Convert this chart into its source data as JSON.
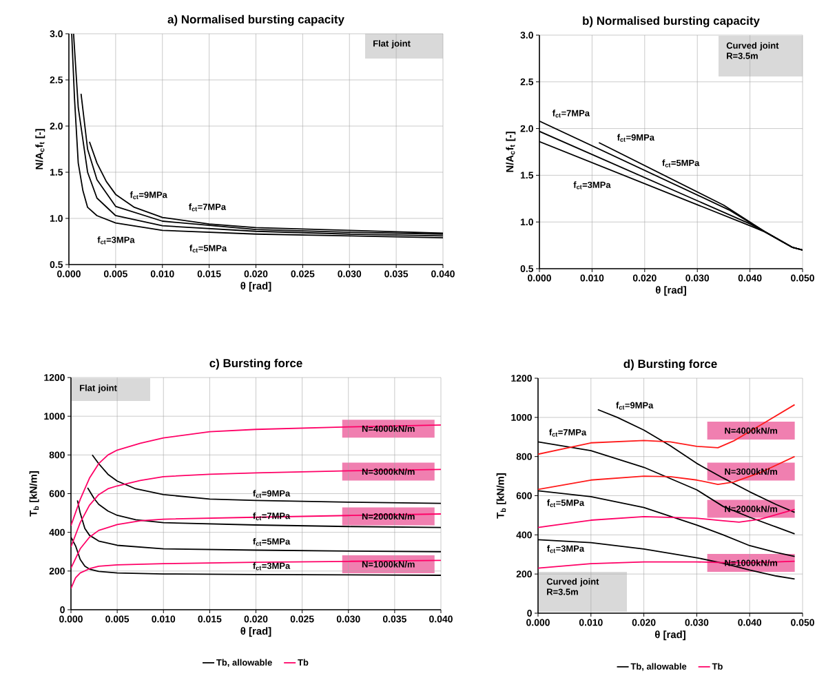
{
  "chart_data": [
    {
      "type": "line",
      "title": "a) Normalised bursting capacity",
      "xlabel": "θ [rad]",
      "ylabel": "N/A$_{c}$f$_{t}$ [-]",
      "xlim": [
        0,
        0.04
      ],
      "ylim": [
        0.5,
        3.0
      ],
      "xticks": [
        {
          "value": 0,
          "label": "0.000"
        },
        {
          "value": 0.005,
          "label": "0.005"
        },
        {
          "value": 0.01,
          "label": "0.010"
        },
        {
          "value": 0.015,
          "label": "0.015"
        },
        {
          "value": 0.02,
          "label": "0.020"
        },
        {
          "value": 0.025,
          "label": "0.025"
        },
        {
          "value": 0.03,
          "label": "0.030"
        },
        {
          "value": 0.035,
          "label": "0.035"
        },
        {
          "value": 0.04,
          "label": "0.040"
        }
      ],
      "yticks": [
        {
          "value": 0.5,
          "label": "0.5"
        },
        {
          "value": 1,
          "label": "1.0"
        },
        {
          "value": 1.5,
          "label": "1.5"
        },
        {
          "value": 2,
          "label": "2.0"
        },
        {
          "value": 2.5,
          "label": "2.5"
        },
        {
          "value": 3,
          "label": "3.0"
        }
      ],
      "grid": true,
      "marker": "none",
      "line_style": "solid",
      "series": [
        {
          "color": "#000000",
          "x": [
            0.0003,
            0.0006,
            0.001,
            0.0015,
            0.002,
            0.003,
            0.005,
            0.01,
            0.02,
            0.03,
            0.04
          ],
          "values": [
            3.0,
            2.3,
            1.6,
            1.3,
            1.12,
            1.03,
            0.95,
            0.87,
            0.83,
            0.81,
            0.79
          ]
        },
        {
          "color": "#000000",
          "x": [
            0.0005,
            0.001,
            0.002,
            0.003,
            0.005,
            0.01,
            0.02,
            0.03,
            0.04
          ],
          "values": [
            3.0,
            2.2,
            1.5,
            1.22,
            1.03,
            0.92,
            0.86,
            0.83,
            0.81
          ]
        },
        {
          "color": "#000000",
          "x": [
            0.0013,
            0.002,
            0.003,
            0.005,
            0.01,
            0.02,
            0.03,
            0.04
          ],
          "values": [
            2.35,
            1.75,
            1.42,
            1.13,
            0.97,
            0.88,
            0.85,
            0.83
          ]
        },
        {
          "color": "#000000",
          "x": [
            0.0022,
            0.003,
            0.004,
            0.005,
            0.007,
            0.01,
            0.015,
            0.02,
            0.03,
            0.04
          ],
          "values": [
            1.83,
            1.6,
            1.4,
            1.26,
            1.12,
            1.01,
            0.94,
            0.9,
            0.87,
            0.84
          ]
        }
      ],
      "annotations": [
        "Flat joint",
        "f$_{ct}$=9MPa",
        "f$_{ct}$=7MPa",
        "f$_{ct}$=5MPa",
        "f$_{ct}$=3MPa"
      ]
    },
    {
      "type": "line",
      "title": "b) Normalised bursting capacity",
      "xlabel": "θ [rad]",
      "ylabel": "N/A$_{c}$f$_{t}$ [-]",
      "xlim": [
        0,
        0.05
      ],
      "ylim": [
        0.5,
        3.0
      ],
      "xticks": [
        {
          "value": 0,
          "label": "0.000"
        },
        {
          "value": 0.01,
          "label": "0.010"
        },
        {
          "value": 0.02,
          "label": "0.020"
        },
        {
          "value": 0.03,
          "label": "0.030"
        },
        {
          "value": 0.04,
          "label": "0.040"
        },
        {
          "value": 0.05,
          "label": "0.050"
        }
      ],
      "yticks": [
        {
          "value": 0.5,
          "label": "0.5"
        },
        {
          "value": 1,
          "label": "1.0"
        },
        {
          "value": 1.5,
          "label": "1.5"
        },
        {
          "value": 2,
          "label": "2.0"
        },
        {
          "value": 2.5,
          "label": "2.5"
        },
        {
          "value": 3,
          "label": "3.0"
        }
      ],
      "grid": true,
      "marker": "none",
      "line_style": "solid",
      "series": [
        {
          "color": "#000000",
          "x": [
            0,
            0.04,
            0.043,
            0.048,
            0.05
          ],
          "values": [
            1.86,
            0.96,
            0.89,
            0.73,
            0.7
          ]
        },
        {
          "color": "#000000",
          "x": [
            0,
            0.04,
            0.043,
            0.048,
            0.05
          ],
          "values": [
            1.97,
            0.98,
            0.89,
            0.73,
            0.7
          ]
        },
        {
          "color": "#000000",
          "x": [
            0,
            0.036,
            0.043,
            0.048,
            0.05
          ],
          "values": [
            2.08,
            1.13,
            0.89,
            0.73,
            0.7
          ]
        },
        {
          "color": "#000000",
          "x": [
            0.0113,
            0.035,
            0.043,
            0.048,
            0.05
          ],
          "values": [
            1.85,
            1.18,
            0.89,
            0.73,
            0.7
          ]
        }
      ],
      "annotations": [
        "Curved joint R=3.5m",
        "f$_{ct}$=7MPa",
        "f$_{ct}$=9MPa",
        "f$_{ct}$=5MPa",
        "f$_{ct}$=3MPa"
      ]
    },
    {
      "type": "line",
      "title": "c) Bursting force",
      "xlabel": "θ [rad]",
      "ylabel": "T$_{b}$ [kN/m]",
      "xlim": [
        0,
        0.04
      ],
      "ylim": [
        0,
        1200
      ],
      "xticks": [
        {
          "value": 0,
          "label": "0.000"
        },
        {
          "value": 0.005,
          "label": "0.005"
        },
        {
          "value": 0.01,
          "label": "0.010"
        },
        {
          "value": 0.015,
          "label": "0.015"
        },
        {
          "value": 0.02,
          "label": "0.020"
        },
        {
          "value": 0.025,
          "label": "0.025"
        },
        {
          "value": 0.03,
          "label": "0.030"
        },
        {
          "value": 0.035,
          "label": "0.035"
        },
        {
          "value": 0.04,
          "label": "0.040"
        }
      ],
      "yticks": [
        0,
        200,
        400,
        600,
        800,
        1000,
        1200
      ],
      "grid": true,
      "marker": "none",
      "line_style": "solid",
      "legend": "bottom",
      "series": [
        {
          "name": "Tb, allowable",
          "color": "#000000",
          "x": [
            0,
            0.0005,
            0.001,
            0.0015,
            0.002,
            0.003,
            0.005,
            0.01,
            0.02,
            0.03,
            0.04
          ],
          "values": [
            375,
            330,
            260,
            225,
            210,
            198,
            190,
            185,
            182,
            180,
            178
          ]
        },
        {
          "color": "#000000",
          "x": [
            0.0007,
            0.001,
            0.0015,
            0.002,
            0.003,
            0.005,
            0.01,
            0.02,
            0.03,
            0.04
          ],
          "values": [
            565,
            500,
            420,
            385,
            355,
            333,
            315,
            308,
            303,
            300
          ]
        },
        {
          "color": "#000000",
          "x": [
            0.0018,
            0.0025,
            0.003,
            0.004,
            0.005,
            0.007,
            0.01,
            0.02,
            0.03,
            0.04
          ],
          "values": [
            630,
            575,
            545,
            510,
            488,
            465,
            450,
            438,
            430,
            425
          ]
        },
        {
          "color": "#000000",
          "x": [
            0.0023,
            0.003,
            0.004,
            0.005,
            0.007,
            0.01,
            0.015,
            0.02,
            0.03,
            0.04
          ],
          "values": [
            800,
            755,
            700,
            665,
            625,
            595,
            572,
            565,
            556,
            550
          ]
        },
        {
          "name": "Tb",
          "color": "#ff0066",
          "x": [
            0,
            0.0005,
            0.001,
            0.002,
            0.003,
            0.005,
            0.01,
            0.02,
            0.03,
            0.04
          ],
          "values": [
            110,
            165,
            190,
            212,
            225,
            232,
            238,
            245,
            250,
            255
          ]
        },
        {
          "color": "#ff0066",
          "x": [
            0,
            0.001,
            0.002,
            0.003,
            0.005,
            0.0075,
            0.01,
            0.02,
            0.03,
            0.04
          ],
          "values": [
            215,
            315,
            375,
            410,
            440,
            460,
            468,
            478,
            487,
            495
          ]
        },
        {
          "color": "#ff0066",
          "x": [
            0,
            0.001,
            0.002,
            0.003,
            0.004,
            0.005,
            0.0075,
            0.01,
            0.015,
            0.02,
            0.03,
            0.04
          ],
          "values": [
            325,
            450,
            540,
            595,
            625,
            640,
            668,
            688,
            700,
            707,
            718,
            725
          ]
        },
        {
          "color": "#ff0066",
          "x": [
            0,
            0.001,
            0.002,
            0.003,
            0.004,
            0.005,
            0.0075,
            0.01,
            0.015,
            0.02,
            0.03,
            0.04
          ],
          "values": [
            435,
            570,
            680,
            755,
            800,
            825,
            860,
            888,
            920,
            932,
            945,
            955
          ]
        }
      ],
      "annotations": [
        "Flat joint",
        "f$_{ct}$=9MPa",
        "f$_{ct}$=7MPa",
        "f$_{ct}$=5MPa",
        "f$_{ct}$=3MPa",
        "N=4000kN/m",
        "N=3000kN/m",
        "N=2000kN/m",
        "N=1000kN/m"
      ]
    },
    {
      "type": "line",
      "title": "d) Bursting force",
      "xlabel": "θ [rad]",
      "ylabel": "T$_{b}$ [kN/m]",
      "xlim": [
        0,
        0.05
      ],
      "ylim": [
        0,
        1200
      ],
      "xticks": [
        {
          "value": 0,
          "label": "0.000"
        },
        {
          "value": 0.01,
          "label": "0.010"
        },
        {
          "value": 0.02,
          "label": "0.020"
        },
        {
          "value": 0.03,
          "label": "0.030"
        },
        {
          "value": 0.04,
          "label": "0.040"
        },
        {
          "value": 0.05,
          "label": "0.050"
        }
      ],
      "yticks": [
        0,
        200,
        400,
        600,
        800,
        1000,
        1200
      ],
      "grid": true,
      "marker": "none",
      "line_style": "solid",
      "legend": "bottom",
      "series": [
        {
          "name": "Tb, allowable",
          "color": "#000000",
          "x": [
            0,
            0.01,
            0.02,
            0.03,
            0.035,
            0.04,
            0.045,
            0.0485
          ],
          "values": [
            375,
            360,
            328,
            283,
            255,
            220,
            190,
            175
          ]
        },
        {
          "color": "#000000",
          "x": [
            0,
            0.01,
            0.02,
            0.03,
            0.035,
            0.04,
            0.045,
            0.0485
          ],
          "values": [
            625,
            595,
            540,
            450,
            400,
            345,
            310,
            290
          ]
        },
        {
          "color": "#000000",
          "x": [
            0,
            0.01,
            0.02,
            0.03,
            0.035,
            0.04,
            0.045,
            0.0485
          ],
          "values": [
            875,
            830,
            745,
            630,
            545,
            490,
            440,
            405
          ]
        },
        {
          "color": "#000000",
          "x": [
            0.0113,
            0.015,
            0.02,
            0.025,
            0.03,
            0.035,
            0.04,
            0.045,
            0.0485
          ],
          "values": [
            1040,
            1000,
            935,
            855,
            765,
            690,
            620,
            555,
            515
          ]
        },
        {
          "name": "Tb",
          "color": "#ff0066",
          "x": [
            0,
            0.01,
            0.02,
            0.03,
            0.035,
            0.04,
            0.045,
            0.0485
          ],
          "values": [
            230,
            253,
            262,
            262,
            258,
            258,
            262,
            265
          ]
        },
        {
          "color": "#ff0066",
          "x": [
            0,
            0.01,
            0.02,
            0.03,
            0.035,
            0.038,
            0.042,
            0.0485
          ],
          "values": [
            438,
            475,
            493,
            485,
            472,
            465,
            480,
            530
          ]
        },
        {
          "color": "#ff1a1a",
          "x": [
            0,
            0.01,
            0.02,
            0.025,
            0.03,
            0.034,
            0.037,
            0.042,
            0.0485
          ],
          "values": [
            632,
            680,
            700,
            697,
            680,
            658,
            670,
            718,
            800
          ]
        },
        {
          "color": "#ff1a1a",
          "x": [
            0,
            0.01,
            0.02,
            0.025,
            0.03,
            0.034,
            0.037,
            0.042,
            0.0485
          ],
          "values": [
            812,
            870,
            882,
            875,
            852,
            845,
            880,
            960,
            1065
          ]
        }
      ],
      "annotations": [
        "Curved joint R=3.5m",
        "f$_{ct}$=9MPa",
        "f$_{ct}$=7MPa",
        "f$_{ct}$=5MPa",
        "f$_{ct}$=3MPa",
        "N=4000kN/m",
        "N=3000kN/m",
        "N=2000kN/m",
        "N=1000kN/m"
      ]
    }
  ]
}
